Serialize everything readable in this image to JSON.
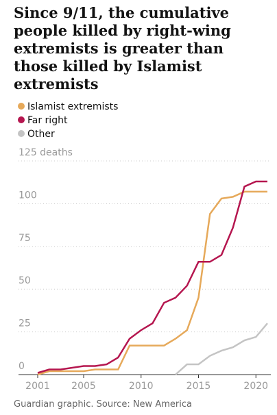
{
  "chart_data": {
    "type": "line",
    "title": "Since 9/11, the cumulative people killed by right-wing extremists is greater than those killed by Islamist extremists",
    "source": "Guardian graphic. Source: New America",
    "x": [
      2001,
      2002,
      2003,
      2004,
      2005,
      2006,
      2007,
      2008,
      2009,
      2010,
      2011,
      2012,
      2013,
      2014,
      2015,
      2016,
      2017,
      2018,
      2019,
      2020,
      2021
    ],
    "series": [
      {
        "name": "Islamist extremists",
        "color": "#e6a95a",
        "values": [
          0,
          2,
          2,
          2,
          2,
          3,
          3,
          3,
          17,
          17,
          17,
          17,
          21,
          26,
          45,
          94,
          103,
          104,
          107,
          107,
          107
        ]
      },
      {
        "name": "Far right",
        "color": "#b5164f",
        "values": [
          1,
          3,
          3,
          4,
          5,
          5,
          6,
          10,
          21,
          26,
          30,
          42,
          45,
          52,
          66,
          66,
          70,
          86,
          110,
          113,
          113
        ]
      },
      {
        "name": "Other",
        "color": "#c4c4c4",
        "values": [
          null,
          null,
          null,
          null,
          null,
          null,
          null,
          null,
          null,
          null,
          null,
          null,
          0,
          6,
          6,
          11,
          14,
          16,
          20,
          22,
          30
        ]
      }
    ],
    "xlim": [
      2001,
      2021
    ],
    "xticks": [
      2001,
      2005,
      2010,
      2015,
      2020
    ],
    "ylim": [
      0,
      125
    ],
    "yticks": [
      0,
      25,
      50,
      75,
      100,
      {
        "value": 125,
        "label": "125 deaths"
      }
    ],
    "grid": true
  }
}
